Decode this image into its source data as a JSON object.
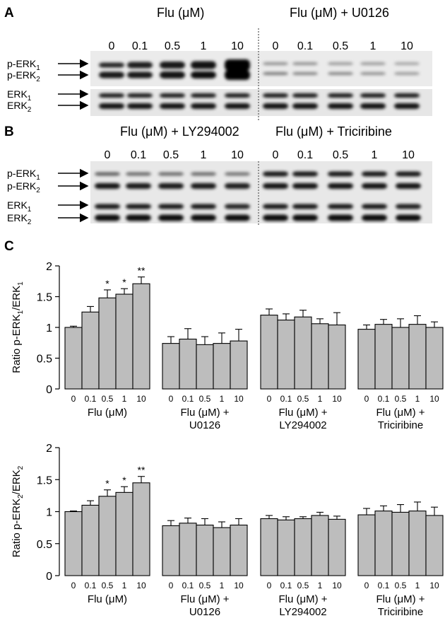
{
  "panel_labels": {
    "a": "A",
    "b": "B",
    "c": "C"
  },
  "blot_a": {
    "left_header": "Flu (μM)",
    "right_header": "Flu (μM) + U0126",
    "lanes": [
      "0",
      "0.1",
      "0.5",
      "1",
      "10"
    ],
    "band_labels": [
      {
        "base": "p-ERK",
        "sub": "1"
      },
      {
        "base": "p-ERK",
        "sub": "2"
      },
      {
        "base": "ERK",
        "sub": "1"
      },
      {
        "base": "ERK",
        "sub": "2"
      }
    ]
  },
  "blot_b": {
    "left_header": "Flu (μM) + LY294002",
    "right_header": "Flu (μM) + Triciribine",
    "lanes": [
      "0",
      "0.1",
      "0.5",
      "1",
      "10"
    ],
    "band_labels": [
      {
        "base": "p-ERK",
        "sub": "1"
      },
      {
        "base": "p-ERK",
        "sub": "2"
      },
      {
        "base": "ERK",
        "sub": "1"
      },
      {
        "base": "ERK",
        "sub": "2"
      }
    ]
  },
  "chart_data": [
    {
      "type": "bar",
      "ylabel": {
        "base": "Ratio p-ERK",
        "sub1": "1",
        "mid": "/ERK",
        "sub2": "1"
      },
      "ylim": [
        0,
        2
      ],
      "yticks": [
        "0",
        "0.5",
        "1",
        "1.5",
        "2"
      ],
      "categories": [
        "0",
        "0.1",
        "0.5",
        "1",
        "10"
      ],
      "groups": [
        {
          "label_lines": [
            "Flu (μM)"
          ],
          "values": [
            1.0,
            1.25,
            1.48,
            1.54,
            1.71
          ],
          "errors": [
            0.02,
            0.09,
            0.13,
            0.09,
            0.11
          ],
          "annotations": [
            "",
            "",
            "*",
            "*",
            "**"
          ]
        },
        {
          "label_lines": [
            "Flu (μM) +",
            "U0126"
          ],
          "values": [
            0.74,
            0.81,
            0.72,
            0.74,
            0.78
          ],
          "errors": [
            0.11,
            0.17,
            0.13,
            0.17,
            0.19
          ],
          "annotations": [
            "",
            "",
            "",
            "",
            ""
          ]
        },
        {
          "label_lines": [
            "Flu (μM) +",
            "LY294002"
          ],
          "values": [
            1.2,
            1.12,
            1.17,
            1.06,
            1.04
          ],
          "errors": [
            0.1,
            0.1,
            0.11,
            0.08,
            0.2
          ],
          "annotations": [
            "",
            "",
            "",
            "",
            ""
          ]
        },
        {
          "label_lines": [
            "Flu (μM) +",
            "Triciribine"
          ],
          "values": [
            0.97,
            1.05,
            1.0,
            1.05,
            1.0
          ],
          "errors": [
            0.07,
            0.08,
            0.14,
            0.14,
            0.09
          ],
          "annotations": [
            "",
            "",
            "",
            "",
            ""
          ]
        }
      ]
    },
    {
      "type": "bar",
      "ylabel": {
        "base": "Ratio p-ERK",
        "sub1": "2",
        "mid": "/ERK",
        "sub2": "2"
      },
      "ylim": [
        0,
        2
      ],
      "yticks": [
        "0",
        "0.5",
        "1",
        "1.5",
        "2"
      ],
      "categories": [
        "0",
        "0.1",
        "0.5",
        "1",
        "10"
      ],
      "groups": [
        {
          "label_lines": [
            "Flu (μM)"
          ],
          "values": [
            1.0,
            1.1,
            1.24,
            1.3,
            1.45
          ],
          "errors": [
            0.01,
            0.07,
            0.1,
            0.09,
            0.1
          ],
          "annotations": [
            "",
            "",
            "*",
            "*",
            "**"
          ]
        },
        {
          "label_lines": [
            "Flu (μM) +",
            "U0126"
          ],
          "values": [
            0.78,
            0.82,
            0.79,
            0.75,
            0.79
          ],
          "errors": [
            0.08,
            0.08,
            0.1,
            0.09,
            0.1
          ],
          "annotations": [
            "",
            "",
            "",
            "",
            ""
          ]
        },
        {
          "label_lines": [
            "Flu (μM) +",
            "LY294002"
          ],
          "values": [
            0.89,
            0.87,
            0.89,
            0.94,
            0.88
          ],
          "errors": [
            0.05,
            0.05,
            0.03,
            0.05,
            0.05
          ],
          "annotations": [
            "",
            "",
            "",
            "",
            ""
          ]
        },
        {
          "label_lines": [
            "Flu (μM) +",
            "Triciribine"
          ],
          "values": [
            0.95,
            1.01,
            0.99,
            1.01,
            0.94
          ],
          "errors": [
            0.1,
            0.08,
            0.12,
            0.14,
            0.13
          ],
          "annotations": [
            "",
            "",
            "",
            "",
            ""
          ]
        }
      ]
    }
  ]
}
